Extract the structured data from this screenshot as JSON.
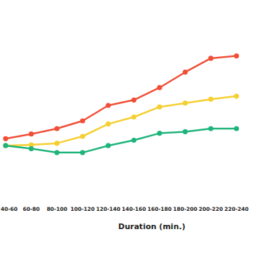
{
  "chart_data": {
    "type": "line",
    "x_label": "Duration (min.)",
    "categories": [
      "40-60",
      "60-80",
      "80-100",
      "100-120",
      "120-140",
      "140-160",
      "160-180",
      "180-200",
      "200-220",
      "220-240"
    ],
    "series": [
      {
        "color": "#f04e37",
        "marker": "circle",
        "values": [
          28.5,
          31.5,
          35,
          40,
          50,
          53.5,
          61.5,
          71.5,
          80.5,
          82
        ]
      },
      {
        "color": "#f5cf2f",
        "marker": "circle",
        "values": [
          24,
          24.5,
          25.5,
          30,
          38,
          42.5,
          49,
          51.5,
          54,
          56
        ]
      },
      {
        "color": "#1db37a",
        "marker": "circle",
        "values": [
          24,
          22,
          19.5,
          19.5,
          24,
          27.5,
          32,
          33,
          35,
          35
        ]
      }
    ],
    "ylim": [
      0,
      100
    ],
    "tick_labels": "x",
    "grid": false
  }
}
